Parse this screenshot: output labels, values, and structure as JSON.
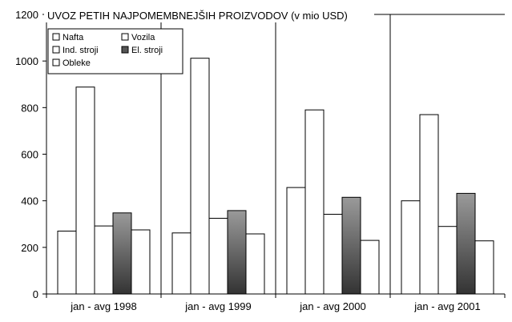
{
  "chart_data": {
    "type": "bar",
    "title": "UVOZ PETIH NAJPOMEMBNEJŠIH PROIZVODOV (v mio USD)",
    "categories": [
      "jan - avg 1998",
      "jan - avg 1999",
      "jan - avg 2000",
      "jan - avg 2001"
    ],
    "series": [
      {
        "name": "Nafta",
        "values": [
          270,
          262,
          457,
          400
        ],
        "color": "#ffffff"
      },
      {
        "name": "Vozila",
        "values": [
          888,
          1012,
          790,
          770
        ],
        "color": "#ffffff"
      },
      {
        "name": "Ind. stroji",
        "values": [
          292,
          325,
          342,
          290
        ],
        "color": "#ffffff"
      },
      {
        "name": "El. stroji",
        "values": [
          348,
          358,
          415,
          432
        ],
        "color": "#777777"
      },
      {
        "name": "Obleke",
        "values": [
          275,
          258,
          230,
          228
        ],
        "color": "#ffffff"
      }
    ],
    "ylim": [
      0,
      1200
    ],
    "yticks": [
      "0",
      "200",
      "400",
      "600",
      "800",
      "1000",
      "1200"
    ],
    "grid": false,
    "legend_position": "top-left"
  }
}
